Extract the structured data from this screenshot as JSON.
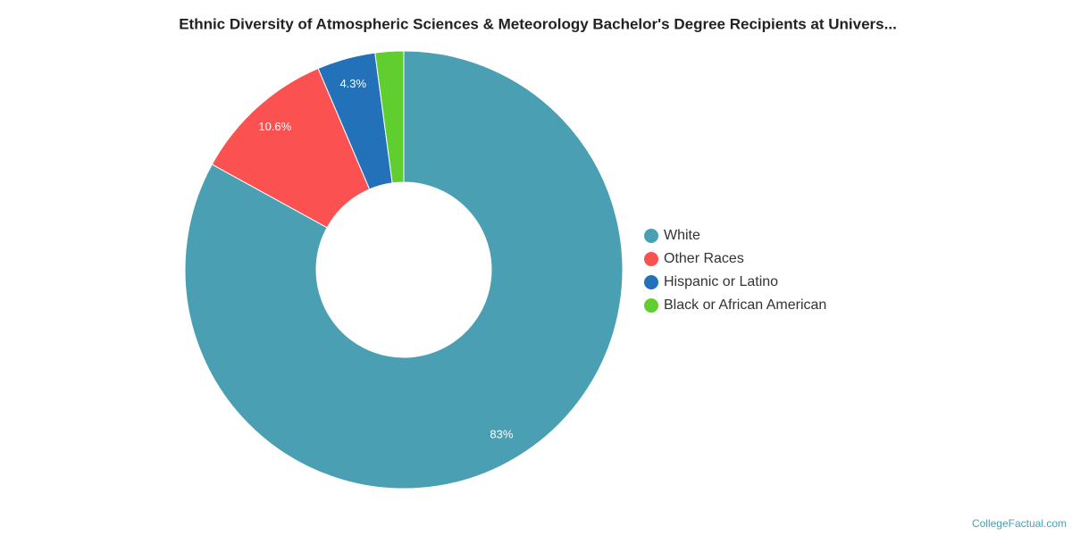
{
  "chart_data": {
    "type": "pie",
    "title": "Ethnic Diversity of Atmospheric Sciences & Meteorology Bachelor's Degree Recipients at Univers...",
    "categories": [
      "White",
      "Other Races",
      "Hispanic or Latino",
      "Black or African American"
    ],
    "values": [
      83,
      10.6,
      4.3,
      2.1
    ],
    "value_labels": [
      "83%",
      "10.6%",
      "4.3%",
      null
    ],
    "colors": [
      "#4a9fb2",
      "#fc5151",
      "#2271b9",
      "#5fce2e"
    ],
    "legend": "right",
    "source": "CollegeFactual.com"
  }
}
